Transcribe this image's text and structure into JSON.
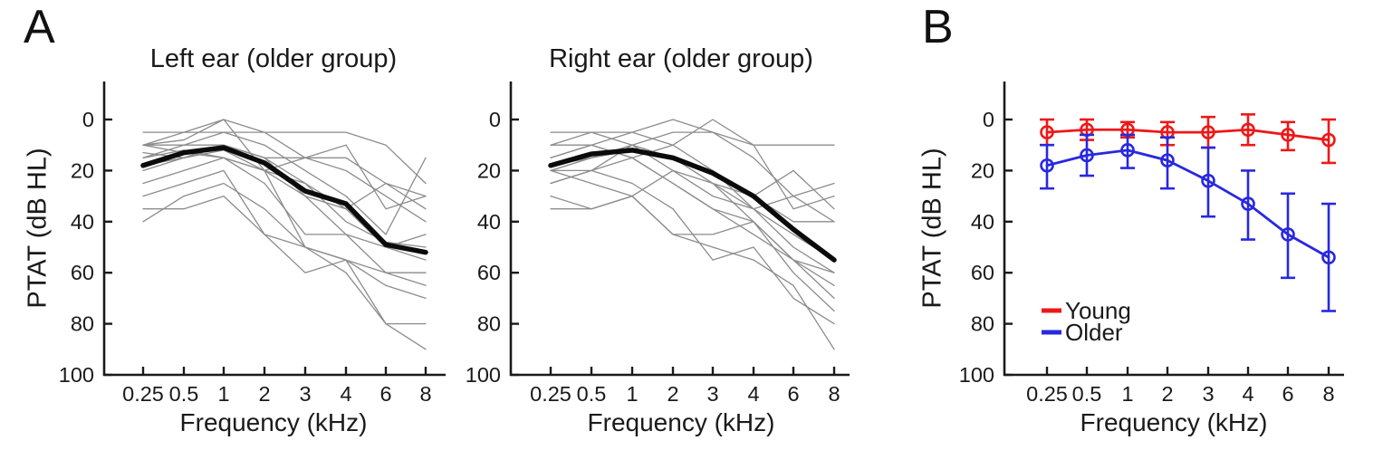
{
  "figure": {
    "panel_a_label": "A",
    "panel_b_label": "B",
    "background_color": "#ffffff",
    "text_color": "#1a1a1a",
    "axis_color": "#1a1a1a"
  },
  "axes": {
    "x_label": "Frequency (kHz)",
    "y_label": "PTAT (dB HL)",
    "x_tick_labels": [
      "0.25",
      "0.5",
      "1",
      "2",
      "3",
      "4",
      "6",
      "8"
    ],
    "y_tick_labels": [
      "0",
      "20",
      "40",
      "60",
      "80",
      "100"
    ],
    "y_tick_values": [
      0,
      20,
      40,
      60,
      80,
      100
    ],
    "y_axis_inverted": true
  },
  "chart_data": [
    {
      "id": "left_ear_older",
      "type": "line",
      "title": "Left ear (older group)",
      "xlabel": "Frequency (kHz)",
      "ylabel": "PTAT (dB HL)",
      "x": [
        0.25,
        0.5,
        1,
        2,
        3,
        4,
        6,
        8
      ],
      "ylim": [
        0,
        100
      ],
      "y_axis_inverted": true,
      "individual_color": "#8c8c8c",
      "mean_color": "#0b0b0b",
      "mean": [
        18,
        13,
        11,
        17,
        28,
        33,
        49,
        52
      ],
      "individuals": [
        [
          15,
          10,
          5,
          10,
          20,
          30,
          45,
          15
        ],
        [
          5,
          5,
          5,
          5,
          5,
          5,
          10,
          25
        ],
        [
          10,
          5,
          0,
          5,
          15,
          15,
          25,
          30
        ],
        [
          10,
          10,
          10,
          15,
          15,
          10,
          35,
          30
        ],
        [
          13,
          15,
          10,
          15,
          25,
          35,
          25,
          35
        ],
        [
          15,
          12,
          15,
          20,
          15,
          20,
          30,
          40
        ],
        [
          18,
          15,
          10,
          15,
          30,
          35,
          50,
          45
        ],
        [
          20,
          15,
          12,
          20,
          25,
          40,
          48,
          50
        ],
        [
          10,
          13,
          15,
          25,
          45,
          45,
          50,
          55
        ],
        [
          25,
          20,
          15,
          20,
          30,
          45,
          60,
          60
        ],
        [
          10,
          8,
          0,
          20,
          50,
          55,
          60,
          65
        ],
        [
          30,
          25,
          20,
          45,
          50,
          55,
          65,
          70
        ],
        [
          35,
          35,
          30,
          45,
          60,
          55,
          80,
          80
        ],
        [
          40,
          30,
          25,
          35,
          50,
          60,
          80,
          90
        ]
      ]
    },
    {
      "id": "right_ear_older",
      "type": "line",
      "title": "Right ear (older group)",
      "xlabel": "Frequency (kHz)",
      "ylabel": "PTAT (dB HL)",
      "x": [
        0.25,
        0.5,
        1,
        2,
        3,
        4,
        6,
        8
      ],
      "ylim": [
        0,
        100
      ],
      "y_axis_inverted": true,
      "individual_color": "#8c8c8c",
      "mean_color": "#0b0b0b",
      "mean": [
        18,
        13.5,
        12,
        15,
        21,
        30,
        43,
        55
      ],
      "individuals": [
        [
          10,
          5,
          5,
          0,
          5,
          10,
          10,
          10
        ],
        [
          20,
          15,
          10,
          5,
          5,
          15,
          30,
          25
        ],
        [
          10,
          10,
          15,
          10,
          0,
          10,
          35,
          30
        ],
        [
          25,
          20,
          10,
          15,
          25,
          30,
          20,
          35
        ],
        [
          15,
          10,
          5,
          10,
          20,
          30,
          40,
          40
        ],
        [
          20,
          25,
          30,
          20,
          25,
          35,
          30,
          40
        ],
        [
          5,
          5,
          10,
          20,
          30,
          35,
          45,
          55
        ],
        [
          20,
          15,
          10,
          15,
          20,
          35,
          50,
          60
        ],
        [
          30,
          35,
          30,
          45,
          45,
          40,
          55,
          60
        ],
        [
          18,
          15,
          12,
          15,
          25,
          40,
          55,
          65
        ],
        [
          25,
          20,
          15,
          25,
          35,
          45,
          55,
          70
        ],
        [
          15,
          10,
          15,
          25,
          35,
          40,
          60,
          75
        ],
        [
          20,
          20,
          25,
          35,
          55,
          50,
          70,
          80
        ],
        [
          35,
          35,
          30,
          45,
          50,
          55,
          65,
          90
        ]
      ]
    },
    {
      "id": "group_means_with_error_bars",
      "type": "line",
      "title": "",
      "xlabel": "Frequency (kHz)",
      "ylabel": "PTAT (dB HL)",
      "x": [
        0.25,
        0.5,
        1,
        2,
        3,
        4,
        6,
        8
      ],
      "ylim": [
        0,
        100
      ],
      "y_axis_inverted": true,
      "legend_position": "lower left",
      "series": [
        {
          "name": "Young",
          "color": "#ee1818",
          "marker": "circle",
          "values": [
            5,
            4,
            4,
            5,
            5,
            4,
            6,
            8
          ],
          "err_up": [
            5,
            4,
            3,
            4,
            6,
            6,
            5,
            8
          ],
          "err_down": [
            5,
            4,
            3,
            5,
            6,
            6,
            6,
            9
          ]
        },
        {
          "name": "Older",
          "color": "#2828e0",
          "marker": "circle",
          "values": [
            18,
            14,
            12,
            16,
            24,
            33,
            45,
            54
          ],
          "err_up": [
            8,
            8,
            6,
            9,
            13,
            13,
            16,
            21
          ],
          "err_down": [
            9,
            8,
            7,
            11,
            14,
            14,
            17,
            21
          ]
        }
      ]
    }
  ]
}
